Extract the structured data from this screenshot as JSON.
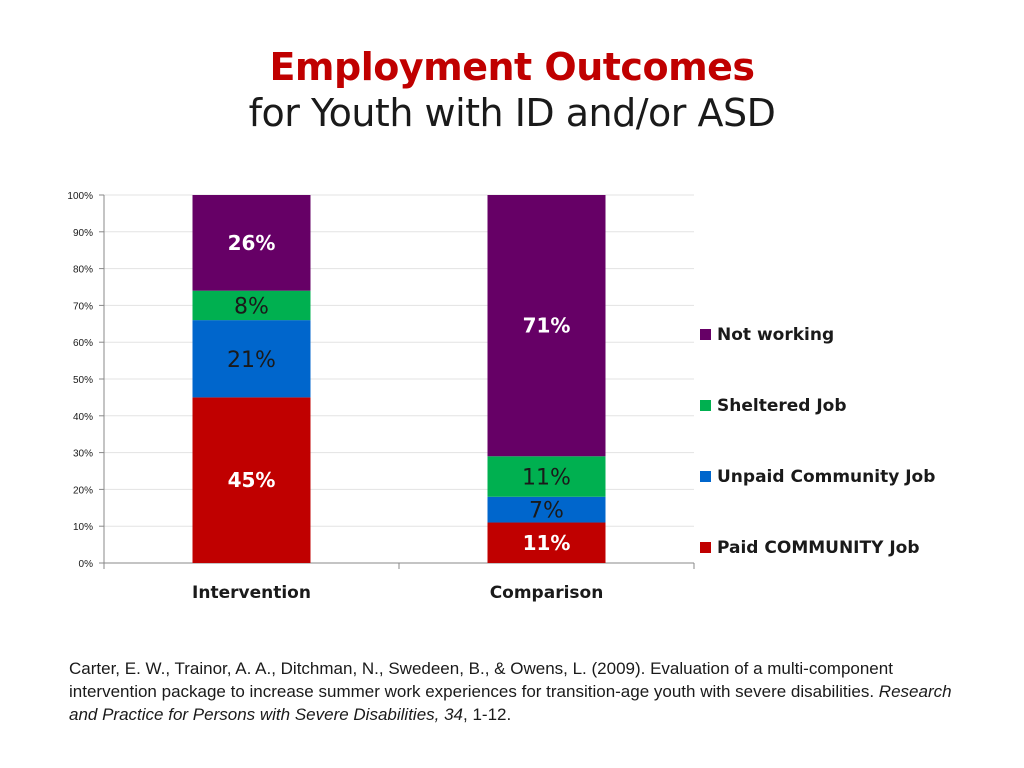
{
  "title": "Employment Outcomes",
  "subtitle": "for Youth with ID and/or ASD",
  "chart_data": {
    "type": "bar",
    "stacked": true,
    "percent_stacked": true,
    "categories": [
      "Intervention",
      "Comparison"
    ],
    "series": [
      {
        "name": "Paid COMMUNITY Job",
        "color": "#c00000",
        "values": [
          45,
          11
        ],
        "labels": [
          "45%",
          "11%"
        ],
        "label_color": "#ffffff",
        "label_bold": true
      },
      {
        "name": "Unpaid Community Job",
        "color": "#0066cc",
        "values": [
          21,
          7
        ],
        "labels": [
          "21%",
          "7%"
        ],
        "label_color": "#1a1a1a",
        "label_bold": false
      },
      {
        "name": "Sheltered Job",
        "color": "#00b050",
        "values": [
          8,
          11
        ],
        "labels": [
          "8%",
          "11%"
        ],
        "label_color": "#1a1a1a",
        "label_bold": false
      },
      {
        "name": "Not working",
        "color": "#660066",
        "values": [
          26,
          71
        ],
        "labels": [
          "26%",
          "71%"
        ],
        "label_color": "#ffffff",
        "label_bold": true
      }
    ],
    "y_ticks": [
      "0%",
      "10%",
      "20%",
      "30%",
      "40%",
      "50%",
      "60%",
      "70%",
      "80%",
      "90%",
      "100%"
    ],
    "ylim": [
      0,
      100
    ],
    "grid": true,
    "legend_position": "right",
    "legend_order": [
      "Not working",
      "Sheltered Job",
      "Unpaid Community Job",
      "Paid COMMUNITY Job"
    ]
  },
  "citation": {
    "text": "Carter, E. W., Trainor, A. A., Ditchman, N., Swedeen, B., & Owens, L. (2009). Evaluation of a multi-component intervention package to increase summer work experiences for transition-age youth with severe disabilities. ",
    "journal": "Research and Practice for Persons with Severe Disabilities, 34",
    "pages": ", 1-12."
  }
}
